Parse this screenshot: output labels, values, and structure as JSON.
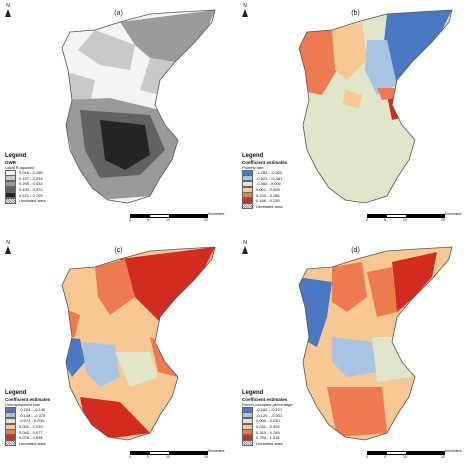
{
  "north_label": "N",
  "scale": {
    "ticks": [
      "0",
      "5",
      "10",
      "20"
    ],
    "unit": "Kilometers"
  },
  "unrelated_area_label": "Unrelated area",
  "legend_title": "Legend",
  "panels": [
    {
      "label": "(a)",
      "subtitle": "GWR",
      "variable": "Local R-squared",
      "classes": [
        {
          "range": "0.018 - 0.156",
          "color": "#f4f4f4"
        },
        {
          "range": "0.157 - 0.294",
          "color": "#c9c9c9"
        },
        {
          "range": "0.295 - 0.432",
          "color": "#9a9a9a"
        },
        {
          "range": "0.433 - 0.570",
          "color": "#626262"
        },
        {
          "range": "0.571 - 0.709",
          "color": "#242424"
        }
      ]
    },
    {
      "label": "(b)",
      "subtitle": "Coefficient estimates",
      "variable": "Poverty rate",
      "classes": [
        {
          "range": "-1.283 - -0.522",
          "color": "#4a78c2"
        },
        {
          "range": "-0.521 - -0.461",
          "color": "#a9c4e2"
        },
        {
          "range": "-0.460 - 0.000",
          "color": "#dfe6c9"
        },
        {
          "range": "0.001 - 0.099",
          "color": "#f7c794"
        },
        {
          "range": "0.100 - 0.185",
          "color": "#ee7b4f"
        },
        {
          "range": "0.186 - 0.239",
          "color": "#d22b22"
        }
      ]
    },
    {
      "label": "(c)",
      "subtitle": "Coefficient estimates",
      "variable": "Unemployment rate",
      "classes": [
        {
          "range": "-0.224 - -0.149",
          "color": "#4a78c2"
        },
        {
          "range": "-0.148 - -0.075",
          "color": "#a9c4e2"
        },
        {
          "range": "-0.074 - 0.000",
          "color": "#dfe6c9"
        },
        {
          "range": "0.001 - 0.039",
          "color": "#f7c794"
        },
        {
          "range": "0.040 - 0.077",
          "color": "#ee7b4f"
        },
        {
          "range": "0.078 - 0.098",
          "color": "#d22b22"
        }
      ]
    },
    {
      "label": "(d)",
      "subtitle": "Coefficient estimates",
      "variable": "Renter-occupied percentage",
      "classes": [
        {
          "range": "-0.182 - -0.121",
          "color": "#4a78c2"
        },
        {
          "range": "-0.120 - -0.001",
          "color": "#a9c4e2"
        },
        {
          "range": "0.000 - 0.030",
          "color": "#dfe6c9"
        },
        {
          "range": "0.031 - 0.309",
          "color": "#f7c794"
        },
        {
          "range": "0.310 - 0.789",
          "color": "#ee7b4f"
        },
        {
          "range": "0.790 - 1.018",
          "color": "#d22b22"
        }
      ]
    }
  ]
}
